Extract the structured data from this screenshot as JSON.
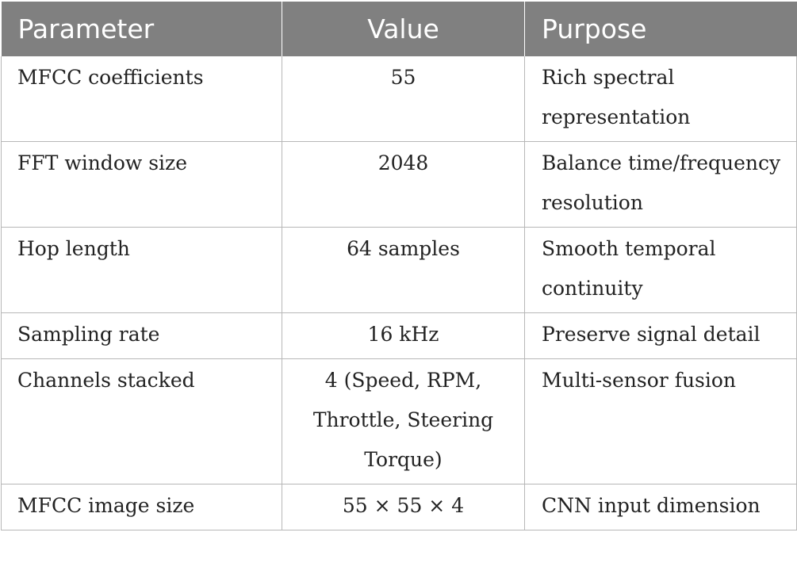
{
  "table": {
    "headers": [
      "Parameter",
      "Value",
      "Purpose"
    ],
    "rows": [
      {
        "parameter": "MFCC coefficients",
        "value": "55",
        "purpose": "Rich spectral representation"
      },
      {
        "parameter": "FFT window size",
        "value": "2048",
        "purpose": "Balance time/frequency resolution"
      },
      {
        "parameter": "Hop length",
        "value": "64 samples",
        "purpose": "Smooth temporal continuity"
      },
      {
        "parameter": "Sampling rate",
        "value": "16 kHz",
        "purpose": "Preserve signal detail"
      },
      {
        "parameter": "Channels stacked",
        "value": "4 (Speed, RPM, Throttle, Steering Torque)",
        "purpose": "Multi-sensor fusion"
      },
      {
        "parameter": "MFCC image size",
        "value": "55 × 55 × 4",
        "purpose": "CNN input dimension"
      }
    ]
  },
  "colors": {
    "header_bg": "#808080",
    "header_text": "#ffffff",
    "grid_line": "#b7b7b7",
    "body_text": "#222222"
  }
}
